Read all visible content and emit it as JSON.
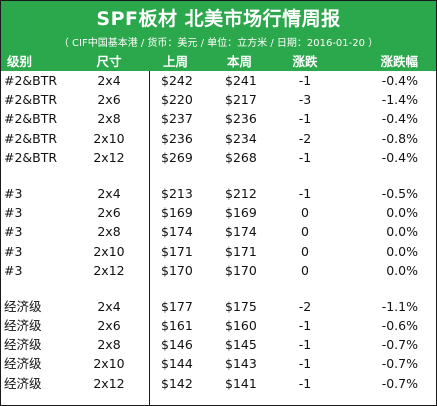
{
  "title": "SPF板材 北美市场行情周报",
  "subtitle": "（ CIF中国基本港 / 货币：美元 / 单位：立方米 / 日期：2016-01-20 ）",
  "columns": [
    "级别",
    "尺寸",
    "上周",
    "本周",
    "涨跌",
    "涨跌幅"
  ],
  "groups": [
    {
      "rows": [
        [
          "#2&BTR",
          "2x4",
          "$242",
          "$241",
          "-1",
          "-0.4%"
        ],
        [
          "#2&BTR",
          "2x6",
          "$220",
          "$217",
          "-3",
          "-1.4%"
        ],
        [
          "#2&BTR",
          "2x8",
          "$237",
          "$236",
          "-1",
          "-0.4%"
        ],
        [
          "#2&BTR",
          "2x10",
          "$236",
          "$234",
          "-2",
          "-0.8%"
        ],
        [
          "#2&BTR",
          "2x12",
          "$269",
          "$268",
          "-1",
          "-0.4%"
        ]
      ]
    },
    {
      "rows": [
        [
          "#3",
          "2x4",
          "$213",
          "$212",
          "-1",
          "-0.5%"
        ],
        [
          "#3",
          "2x6",
          "$169",
          "$169",
          "0",
          "0.0%"
        ],
        [
          "#3",
          "2x8",
          "$174",
          "$174",
          "0",
          "0.0%"
        ],
        [
          "#3",
          "2x10",
          "$171",
          "$171",
          "0",
          "0.0%"
        ],
        [
          "#3",
          "2x12",
          "$170",
          "$170",
          "0",
          "0.0%"
        ]
      ]
    },
    {
      "rows": [
        [
          "经济级",
          "2x4",
          "$177",
          "$175",
          "-2",
          "-1.1%"
        ],
        [
          "经济级",
          "2x6",
          "$161",
          "$160",
          "-1",
          "-0.6%"
        ],
        [
          "经济级",
          "2x8",
          "$146",
          "$145",
          "-1",
          "-0.7%"
        ],
        [
          "经济级",
          "2x10",
          "$144",
          "$143",
          "-1",
          "-0.7%"
        ],
        [
          "经济级",
          "2x12",
          "$142",
          "$141",
          "-1",
          "-0.7%"
        ]
      ]
    }
  ],
  "colors": {
    "header_green": "#2aa84b",
    "header_text": "#ffffff",
    "body_text": "#111111"
  }
}
